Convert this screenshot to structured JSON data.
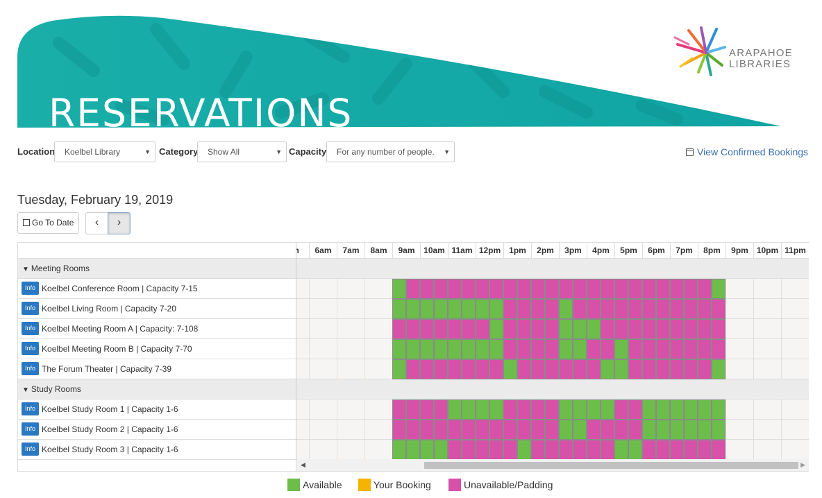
{
  "banner": {
    "title": "RESERVATIONS",
    "logo_line1": "ARAPAHOE",
    "logo_line2": "LIBRARIES"
  },
  "filters": {
    "location": {
      "label": "Location",
      "value": "Koelbel Library"
    },
    "category": {
      "label": "Category",
      "value": "Show All"
    },
    "capacity": {
      "label": "Capacity",
      "value": "For any number of people."
    }
  },
  "view_confirmed": "View Confirmed Bookings",
  "date_heading": "Tuesday, February 19, 2019",
  "go_to_date": "Go To Date",
  "hours": [
    "m",
    "6am",
    "7am",
    "8am",
    "9am",
    "10am",
    "11am",
    "12pm",
    "1pm",
    "2pm",
    "3pm",
    "4pm",
    "5pm",
    "6pm",
    "7pm",
    "8pm",
    "9pm",
    "10pm",
    "11pm"
  ],
  "info_label": "Info",
  "groups": [
    {
      "name": "Meeting Rooms",
      "rooms": [
        {
          "name": "Koelbel Conference Room | Capacity 7-15",
          "slots": "GUUUUUUUUUUUUUUUUUUUUUUG"
        },
        {
          "name": "Koelbel Living Room | Capacity 7-20",
          "slots": "GGGGGGGGUUUUGUUUUUUUUUUU"
        },
        {
          "name": "Koelbel Meeting Room A | Capacity: 7-108",
          "slots": "UUUUUUUGUUUUGGGUUUUUUUUU"
        },
        {
          "name": "Koelbel Meeting Room B | Capacity 7-70",
          "slots": "GGGGGGGGUUUUGGUUGUUUUUUU"
        },
        {
          "name": "The Forum Theater | Capacity 7-39",
          "slots": "GUUUUUUUGUUUUUUGGUUUUUUG"
        }
      ]
    },
    {
      "name": "Study Rooms",
      "rooms": [
        {
          "name": "Koelbel Study Room 1 | Capacity 1-6",
          "slots": "UUUUGGGGUUUUGGGGUUGGGGGG"
        },
        {
          "name": "Koelbel Study Room 2 | Capacity 1-6",
          "slots": "UUUUUUUUUUUUGGUUUUGGGGGG"
        },
        {
          "name": "Koelbel Study Room 3 | Capacity 1-6",
          "slots": "GGGGUUUUUGUUUUUUGGUUUUUU"
        }
      ]
    }
  ],
  "legend": [
    {
      "label": "Available",
      "color": "#6cbd4a"
    },
    {
      "label": "Your Booking",
      "color": "#f5b400"
    },
    {
      "label": "Unavailable/Padding",
      "color": "#d751a8"
    }
  ],
  "colors": {
    "available": "#6cbd4a",
    "unavailable": "#d751a8",
    "banner": "#14aaa6",
    "link": "#3a6fb7",
    "info": "#2b78c2"
  }
}
